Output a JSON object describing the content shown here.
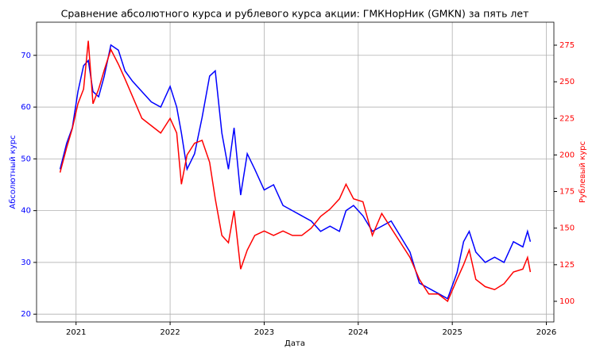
{
  "chart_data": {
    "type": "line",
    "title": "Сравнение абсолютного курса и рублевого курса акции: ГМКНорНик (GMKN) за пять лет",
    "xlabel": "Дата",
    "ylabel": "Абсолютный курс",
    "y2label": "Рублевый курс",
    "x": [
      2020.83,
      2020.9,
      2020.96,
      2021.02,
      2021.08,
      2021.13,
      2021.18,
      2021.24,
      2021.3,
      2021.37,
      2021.45,
      2021.52,
      2021.6,
      2021.7,
      2021.8,
      2021.9,
      2022.0,
      2022.07,
      2022.12,
      2022.18,
      2022.26,
      2022.34,
      2022.42,
      2022.48,
      2022.55,
      2022.62,
      2022.68,
      2022.75,
      2022.82,
      2022.9,
      2023.0,
      2023.1,
      2023.2,
      2023.3,
      2023.4,
      2023.5,
      2023.6,
      2023.7,
      2023.8,
      2023.87,
      2023.95,
      2024.05,
      2024.15,
      2024.25,
      2024.35,
      2024.45,
      2024.55,
      2024.65,
      2024.75,
      2024.85,
      2024.95,
      2025.05,
      2025.12,
      2025.18,
      2025.25,
      2025.35,
      2025.45,
      2025.55,
      2025.65,
      2025.75,
      2025.8,
      2025.83
    ],
    "series": [
      {
        "name": "Абсолютный курс",
        "color": "#0000ff",
        "axis": "y",
        "values": [
          48,
          53,
          56,
          63,
          68,
          69,
          63,
          62,
          66,
          72,
          71,
          67,
          65,
          63,
          61,
          60,
          64,
          60,
          55,
          48,
          51,
          58,
          66,
          67,
          55,
          48,
          56,
          43,
          51,
          48,
          44,
          45,
          41,
          40,
          39,
          38,
          36,
          37,
          36,
          40,
          41,
          39,
          36,
          37,
          38,
          35,
          32,
          26,
          25,
          24,
          23,
          28,
          34,
          36,
          32,
          30,
          31,
          30,
          34,
          33,
          36,
          34
        ]
      },
      {
        "name": "Рублевый курс",
        "color": "#ff0000",
        "axis": "y2",
        "values": [
          188,
          205,
          218,
          235,
          245,
          278,
          235,
          245,
          258,
          272,
          262,
          252,
          240,
          225,
          220,
          215,
          225,
          215,
          180,
          200,
          208,
          210,
          195,
          170,
          145,
          140,
          162,
          122,
          135,
          145,
          148,
          145,
          148,
          145,
          145,
          150,
          158,
          163,
          170,
          180,
          170,
          168,
          145,
          160,
          150,
          140,
          130,
          115,
          105,
          105,
          100,
          115,
          125,
          135,
          115,
          110,
          108,
          112,
          120,
          122,
          130,
          120
        ]
      }
    ],
    "xlim": [
      2020.58,
      2026.08
    ],
    "xticks": [
      2021,
      2022,
      2023,
      2024,
      2025,
      2026
    ],
    "ylim": [
      18.5,
      76.4
    ],
    "yticks": [
      20,
      30,
      40,
      50,
      60,
      70
    ],
    "y2lim": [
      85.9,
      290.7
    ],
    "y2ticks": [
      100,
      125,
      150,
      175,
      200,
      225,
      250,
      275
    ],
    "grid": true
  }
}
